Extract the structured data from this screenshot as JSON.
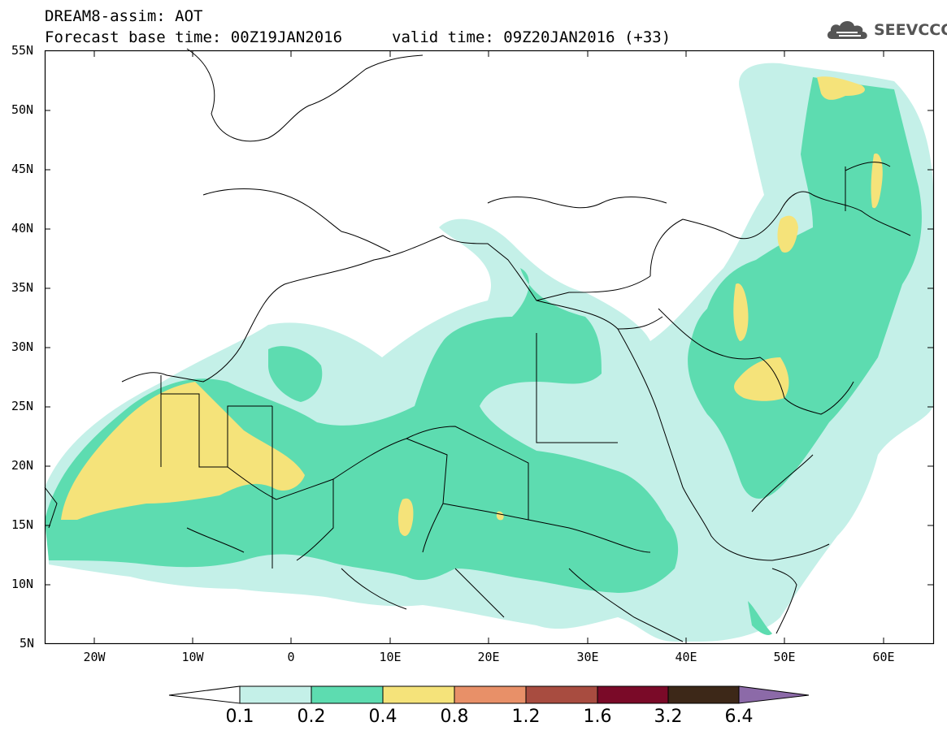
{
  "title_line1": "DREAM8-assim: AOT",
  "title_line2": "Forecast base time: 00Z19JAN2016",
  "valid_time": "valid time: 09Z20JAN2016 (+33)",
  "logo_text": "SEEVCCC",
  "lat_labels": [
    "55N",
    "50N",
    "45N",
    "40N",
    "35N",
    "30N",
    "25N",
    "20N",
    "15N",
    "10N",
    "5N"
  ],
  "lon_labels": [
    "20W",
    "10W",
    "0",
    "10E",
    "20E",
    "30E",
    "40E",
    "50E",
    "60E"
  ],
  "colorbar": {
    "levels": [
      "0.1",
      "0.2",
      "0.4",
      "0.8",
      "1.2",
      "1.6",
      "3.2",
      "6.4"
    ],
    "colors": [
      "#ffffff",
      "#c4f0e8",
      "#5ddcb0",
      "#f5e37a",
      "#e89068",
      "#a84c40",
      "#7a0a28",
      "#3d2818",
      "#8c6aa8"
    ]
  },
  "colors": {
    "land_fill": "#ffffff",
    "border": "#000000",
    "low": "#c4f0e8",
    "mid": "#5ddcb0",
    "high": "#f5e37a"
  }
}
